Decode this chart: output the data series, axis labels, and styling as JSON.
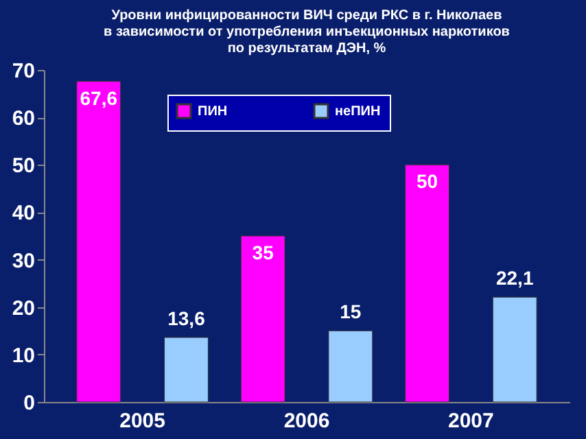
{
  "chart_data": {
    "type": "bar",
    "title": "Уровни инфицированности ВИЧ среди РКС в г. Николаев\nв зависимости от употребления инъекционных наркотиков\nпо результатам ДЭН, %",
    "categories": [
      "2005",
      "2006",
      "2007"
    ],
    "series": [
      {
        "name": "ПИН",
        "color": "#ff00ff",
        "values": [
          67.6,
          35,
          50
        ],
        "value_labels": [
          "67,6",
          "35",
          "50"
        ]
      },
      {
        "name": "неПИН",
        "color": "#99ccff",
        "values": [
          13.6,
          15,
          22.1
        ],
        "value_labels": [
          "13,6",
          "15",
          "22,1"
        ]
      }
    ],
    "ylim": [
      0,
      70
    ],
    "yticks": [
      0,
      10,
      20,
      30,
      40,
      50,
      60,
      70
    ],
    "grid": false,
    "legend": "top"
  }
}
